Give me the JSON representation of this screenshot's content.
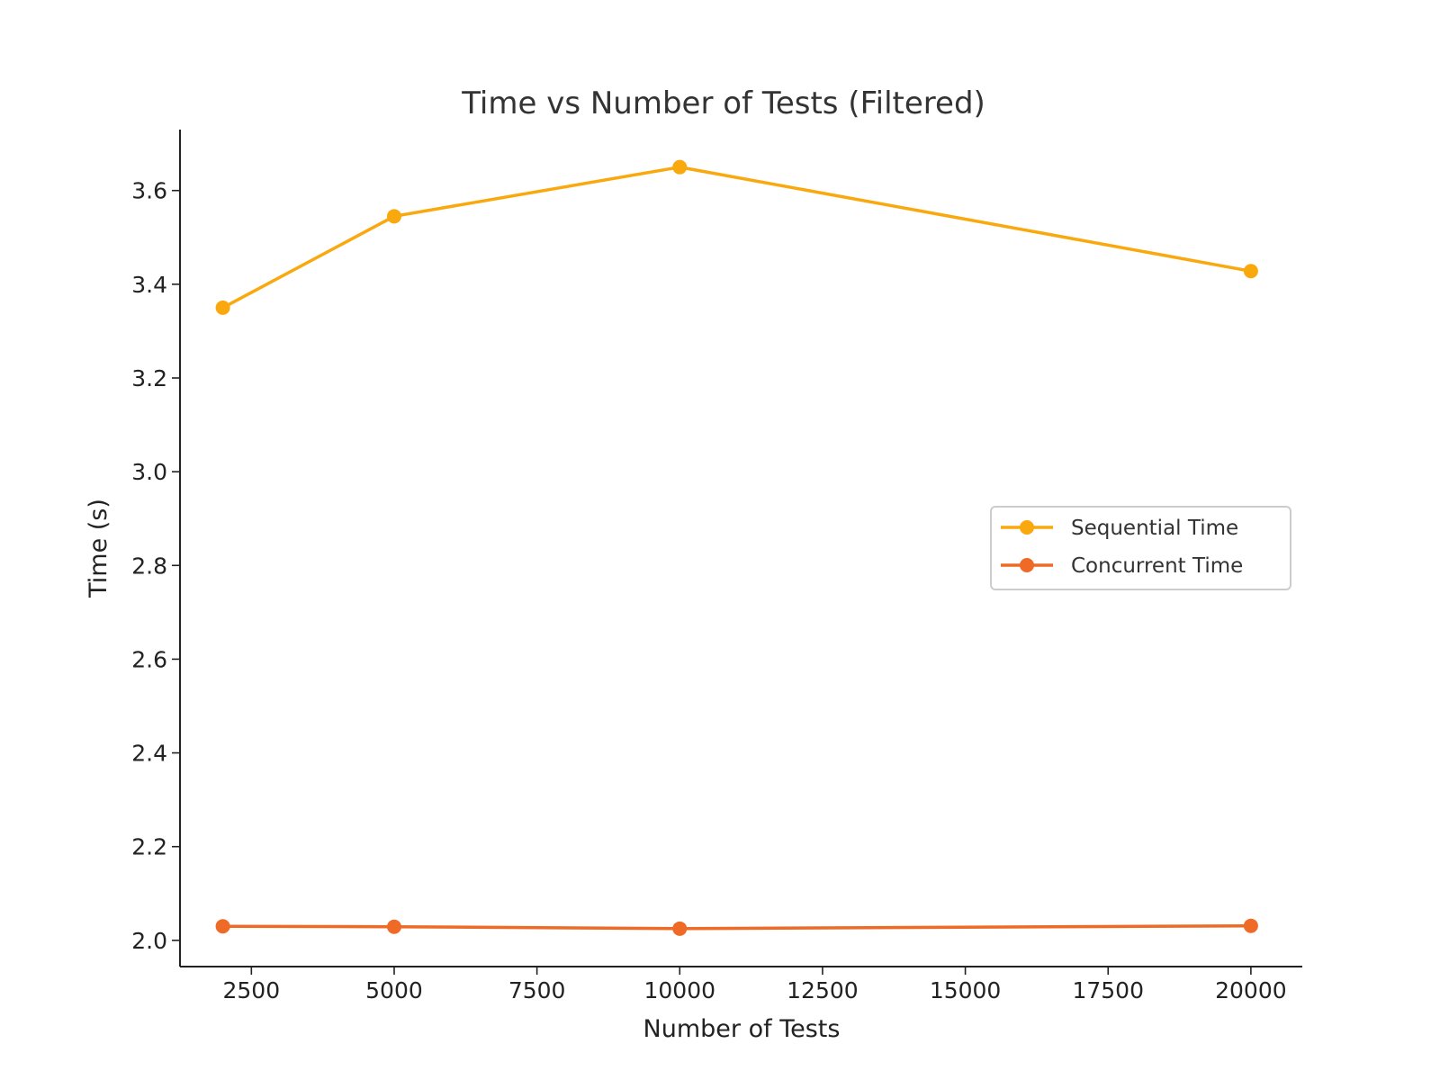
{
  "chart_data": {
    "type": "line",
    "title": "Time vs Number of Tests (Filtered)",
    "xlabel": "Number of Tests",
    "ylabel": "Time (s)",
    "x": [
      2000,
      5000,
      10000,
      20000
    ],
    "xlim": [
      1250,
      20900
    ],
    "ylim": [
      1.944,
      3.73
    ],
    "xticks": [
      2500,
      5000,
      7500,
      10000,
      12500,
      15000,
      17500,
      20000
    ],
    "yticks": [
      2.0,
      2.2,
      2.4,
      2.6,
      2.8,
      3.0,
      3.2,
      3.4,
      3.6
    ],
    "ytick_labels": [
      "2.0",
      "2.2",
      "2.4",
      "2.6",
      "2.8",
      "3.0",
      "3.2",
      "3.4",
      "3.6"
    ],
    "series": [
      {
        "name": "Sequential Time",
        "color": "#F9A80E",
        "values": [
          3.35,
          3.545,
          3.65,
          3.428
        ]
      },
      {
        "name": "Concurrent Time",
        "color": "#EE6A26",
        "values": [
          2.03,
          2.029,
          2.025,
          2.031
        ]
      }
    ],
    "grid": false,
    "legend_position": "center-right",
    "spines": [
      "left",
      "bottom"
    ]
  }
}
